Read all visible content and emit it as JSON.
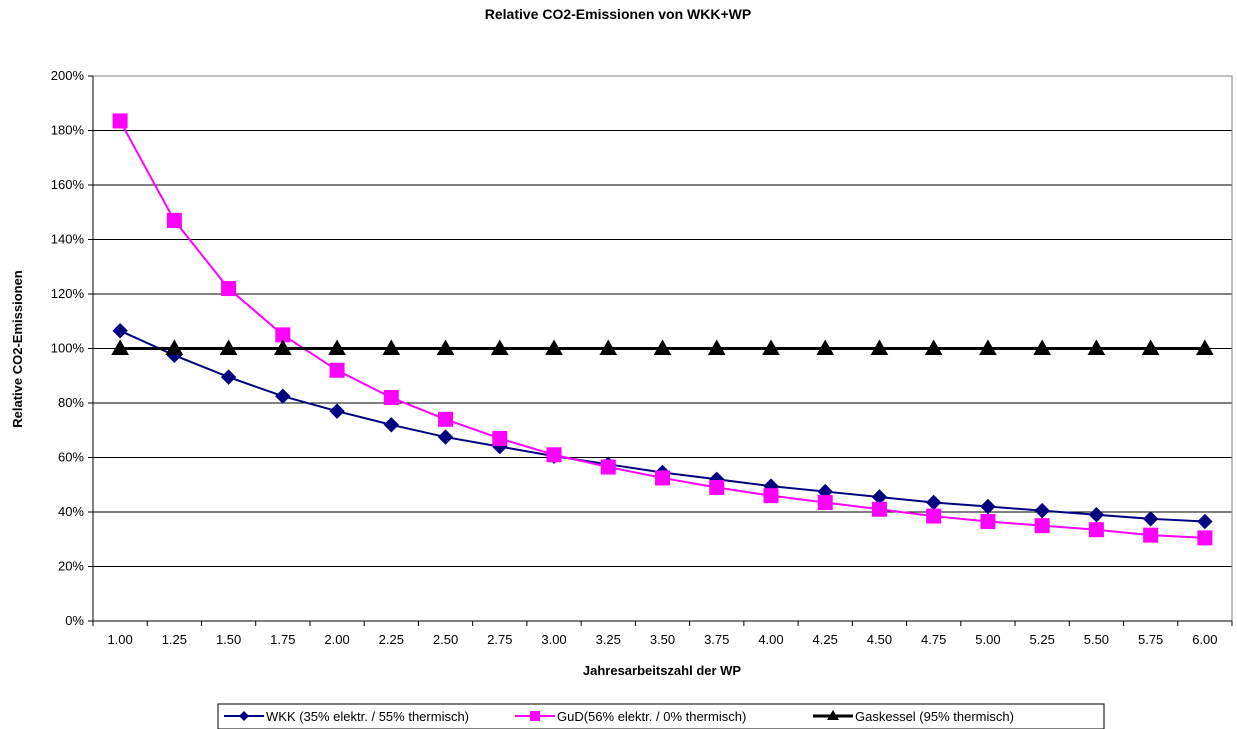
{
  "chart_data": {
    "type": "line",
    "title": "Relative CO2-Emissionen von WKK+WP",
    "xlabel": "Jahresarbeitszahl der WP",
    "ylabel": "Relative CO2-Emissionen",
    "categories": [
      "1.00",
      "1.25",
      "1.50",
      "1.75",
      "2.00",
      "2.25",
      "2.50",
      "2.75",
      "3.00",
      "3.25",
      "3.50",
      "3.75",
      "4.00",
      "4.25",
      "4.50",
      "4.75",
      "5.00",
      "5.25",
      "5.50",
      "5.75",
      "6.00"
    ],
    "y_ticks": [
      "0%",
      "20%",
      "40%",
      "60%",
      "80%",
      "100%",
      "120%",
      "140%",
      "160%",
      "180%",
      "200%"
    ],
    "ylim": [
      0,
      200
    ],
    "grid": "horizontal",
    "legend_position": "bottom",
    "series": [
      {
        "name": "WKK (35% elektr. / 55% thermisch)",
        "color": "#000080",
        "marker": "diamond",
        "values": [
          106.5,
          97.5,
          89.5,
          82.5,
          77,
          72,
          67.5,
          64,
          60.5,
          57.5,
          54.5,
          52,
          49.5,
          47.5,
          45.5,
          43.5,
          42,
          40.5,
          39,
          37.5,
          36.5
        ]
      },
      {
        "name": "GuD(56% elektr. / 0% thermisch)",
        "color": "#ff00ff",
        "marker": "square",
        "values": [
          183.5,
          147,
          122,
          105,
          92,
          82,
          74,
          67,
          61,
          56.5,
          52.5,
          49,
          46,
          43.5,
          41,
          38.5,
          36.5,
          35,
          33.5,
          31.5,
          30.5
        ]
      },
      {
        "name": "Gaskessel (95% thermisch)",
        "color": "#000000",
        "marker": "triangle",
        "values": [
          100,
          100,
          100,
          100,
          100,
          100,
          100,
          100,
          100,
          100,
          100,
          100,
          100,
          100,
          100,
          100,
          100,
          100,
          100,
          100,
          100
        ]
      }
    ]
  }
}
